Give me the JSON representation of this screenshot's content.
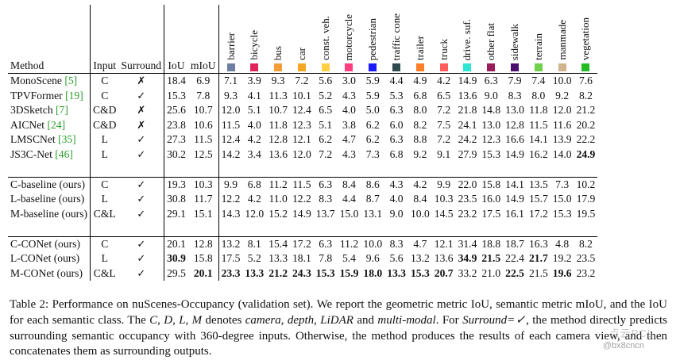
{
  "table": {
    "col_headers": {
      "method": "Method",
      "input": "Input",
      "surround": "Surround",
      "iou": "IoU",
      "miou": "mIoU"
    },
    "classes": [
      {
        "name": "barrier",
        "color": "#6e7fa3"
      },
      {
        "name": "bicycle",
        "color": "#e0245e"
      },
      {
        "name": "bus",
        "color": "#f39c3a"
      },
      {
        "name": "car",
        "color": "#f5a623"
      },
      {
        "name": "const. veh.",
        "color": "#ffcf44"
      },
      {
        "name": "motorcycle",
        "color": "#ff3d7f"
      },
      {
        "name": "pedestrian",
        "color": "#1a1aff"
      },
      {
        "name": "traffic cone",
        "color": "#2f4b4f"
      },
      {
        "name": "trailer",
        "color": "#ff7f2a"
      },
      {
        "name": "truck",
        "color": "#ff5c5c"
      },
      {
        "name": "drive. suf.",
        "color": "#2ee6d6"
      },
      {
        "name": "other flat",
        "color": "#9b1c5a"
      },
      {
        "name": "sidewalk",
        "color": "#4b0f6b"
      },
      {
        "name": "terrain",
        "color": "#6fd14b"
      },
      {
        "name": "manmade",
        "color": "#d2b48c"
      },
      {
        "name": "vegetation",
        "color": "#22bb22"
      }
    ],
    "groups": [
      [
        {
          "method": "MonoScene",
          "cite": "[5]",
          "input": "C",
          "surround": "✗",
          "vals": [
            "18.4",
            "6.9",
            "7.1",
            "3.9",
            "9.3",
            "7.2",
            "5.6",
            "3.0",
            "5.9",
            "4.4",
            "4.9",
            "4.2",
            "14.9",
            "6.3",
            "7.9",
            "7.4",
            "10.0",
            "7.6"
          ]
        },
        {
          "method": "TPVFormer",
          "cite": "[19]",
          "input": "C",
          "surround": "✓",
          "vals": [
            "15.3",
            "7.8",
            "9.3",
            "4.1",
            "11.3",
            "10.1",
            "5.2",
            "4.3",
            "5.9",
            "5.3",
            "6.8",
            "6.5",
            "13.6",
            "9.0",
            "8.3",
            "8.0",
            "9.2",
            "8.2"
          ]
        },
        {
          "method": "3DSketch",
          "cite": "[7]",
          "input": "C&D",
          "surround": "✗",
          "vals": [
            "25.6",
            "10.7",
            "12.0",
            "5.1",
            "10.7",
            "12.4",
            "6.5",
            "4.0",
            "5.0",
            "6.3",
            "8.0",
            "7.2",
            "21.8",
            "14.8",
            "13.0",
            "11.8",
            "12.0",
            "21.2"
          ]
        },
        {
          "method": "AICNet",
          "cite": "[24]",
          "input": "C&D",
          "surround": "✗",
          "vals": [
            "23.8",
            "10.6",
            "11.5",
            "4.0",
            "11.8",
            "12.3",
            "5.1",
            "3.8",
            "6.2",
            "6.0",
            "8.2",
            "7.5",
            "24.1",
            "13.0",
            "12.8",
            "11.5",
            "11.6",
            "20.2"
          ]
        },
        {
          "method": "LMSCNet",
          "cite": "[35]",
          "input": "L",
          "surround": "✓",
          "vals": [
            "27.3",
            "11.5",
            "12.4",
            "4.2",
            "12.8",
            "12.1",
            "6.2",
            "4.7",
            "6.2",
            "6.3",
            "8.8",
            "7.2",
            "24.2",
            "12.3",
            "16.6",
            "14.1",
            "13.9",
            "22.2"
          ]
        },
        {
          "method": "JS3C-Net",
          "cite": "[46]",
          "input": "L",
          "surround": "✓",
          "vals": [
            "30.2",
            "12.5",
            "14.2",
            "3.4",
            "13.6",
            "12.0",
            "7.2",
            "4.3",
            "7.3",
            "6.8",
            "9.2",
            "9.1",
            "27.9",
            "15.3",
            "14.9",
            "16.2",
            "14.0",
            "24.9"
          ],
          "bold": [
            17
          ]
        }
      ],
      [
        {
          "method": "C-baseline (ours)",
          "cite": "",
          "input": "C",
          "surround": "✓",
          "vals": [
            "19.3",
            "10.3",
            "9.9",
            "6.8",
            "11.2",
            "11.5",
            "6.3",
            "8.4",
            "8.6",
            "4.3",
            "4.2",
            "9.9",
            "22.0",
            "15.8",
            "14.1",
            "13.5",
            "7.3",
            "10.2"
          ]
        },
        {
          "method": "L-baseline (ours)",
          "cite": "",
          "input": "L",
          "surround": "✓",
          "vals": [
            "30.8",
            "11.7",
            "12.2",
            "4.2",
            "11.0",
            "12.2",
            "8.3",
            "4.4",
            "8.7",
            "4.0",
            "8.4",
            "10.3",
            "23.5",
            "16.0",
            "14.9",
            "15.7",
            "15.0",
            "17.9"
          ]
        },
        {
          "method": "M-baseline (ours)",
          "cite": "",
          "input": "C&L",
          "surround": "✓",
          "vals": [
            "29.1",
            "15.1",
            "14.3",
            "12.0",
            "15.2",
            "14.9",
            "13.7",
            "15.0",
            "13.1",
            "9.0",
            "10.0",
            "14.5",
            "23.2",
            "17.5",
            "16.1",
            "17.2",
            "15.3",
            "19.5"
          ]
        }
      ],
      [
        {
          "method": "C-CONet (ours)",
          "cite": "",
          "input": "C",
          "surround": "✓",
          "vals": [
            "20.1",
            "12.8",
            "13.2",
            "8.1",
            "15.4",
            "17.2",
            "6.3",
            "11.2",
            "10.0",
            "8.3",
            "4.7",
            "12.1",
            "31.4",
            "18.8",
            "18.7",
            "16.3",
            "4.8",
            "8.2"
          ]
        },
        {
          "method": "L-CONet (ours)",
          "cite": "",
          "input": "L",
          "surround": "✓",
          "vals": [
            "30.9",
            "15.8",
            "17.5",
            "5.2",
            "13.3",
            "18.1",
            "7.8",
            "5.4",
            "9.6",
            "5.6",
            "13.2",
            "13.6",
            "34.9",
            "21.5",
            "22.4",
            "21.7",
            "19.2",
            "23.5"
          ],
          "bold": [
            0,
            12,
            13,
            15
          ]
        },
        {
          "method": "M-CONet (ours)",
          "cite": "",
          "input": "C&L",
          "surround": "✓",
          "vals": [
            "29.5",
            "20.1",
            "23.3",
            "13.3",
            "21.2",
            "24.3",
            "15.3",
            "15.9",
            "18.0",
            "13.3",
            "15.3",
            "20.7",
            "33.2",
            "21.0",
            "22.5",
            "21.5",
            "19.6",
            "23.2"
          ],
          "bold": [
            1,
            2,
            3,
            4,
            5,
            6,
            7,
            8,
            9,
            10,
            11,
            14,
            16
          ]
        }
      ]
    ]
  },
  "caption": {
    "label": "Table 2:",
    "text1": " Performance on nuScenes-Occupancy (validation set). We report the geometric metric IoU, semantic metric mIoU, and the IoU for each semantic class.  The ",
    "symbols": "C, D, L, M",
    "text2": " denotes ",
    "modes": "camera, depth, LiDAR",
    "text3": " and ",
    "mm": "multi-modal",
    "text4": ". For ",
    "surr": "Surround=✓",
    "text5": ", the method directly predicts surrounding semantic occupancy with 360-degree inputs. Otherwise, the method produces the results of each camera view, and then concatenates them as surrounding outputs."
  },
  "watermark": {
    "logo": "点云PCL",
    "handle": "@bx8cncn"
  }
}
